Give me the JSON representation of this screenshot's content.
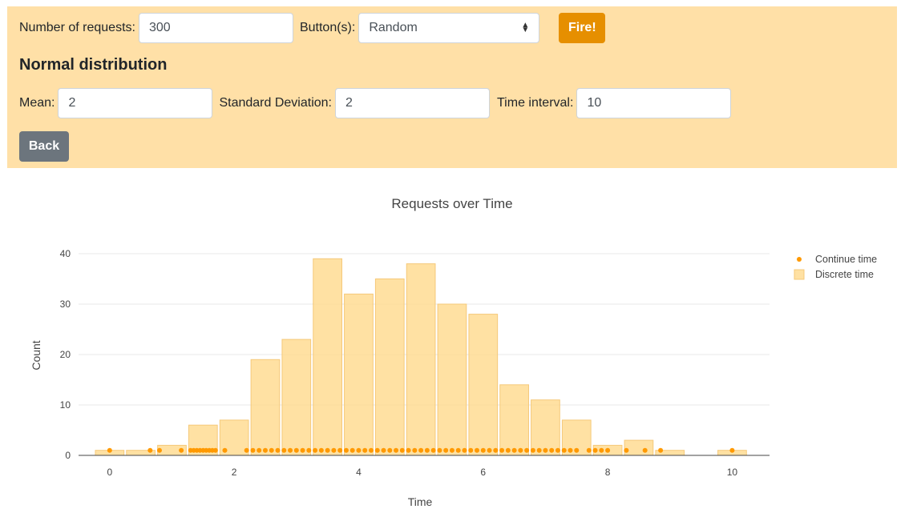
{
  "form": {
    "requests_label": "Number of requests:",
    "requests_value": "300",
    "buttons_label": "Button(s):",
    "buttons_value": "Random",
    "fire_label": "Fire!",
    "section_heading": "Normal distribution",
    "mean_label": "Mean:",
    "mean_value": "2",
    "std_label": "Standard Deviation:",
    "std_value": "2",
    "interval_label": "Time interval:",
    "interval_value": "10",
    "back_label": "Back"
  },
  "colors": {
    "panel_bg": "#ffe0a7",
    "fire_button": "#e68f00",
    "back_button": "#6c757d",
    "bar_fill": "#ffd98c",
    "dot": "#ff9900"
  },
  "chart_data": {
    "type": "bar",
    "title": "Requests over Time",
    "xlabel": "Time",
    "ylabel": "Count",
    "xlim": [
      -0.5,
      10.6
    ],
    "ylim": [
      0,
      40
    ],
    "xticks": [
      0,
      2,
      4,
      6,
      8,
      10
    ],
    "yticks": [
      0,
      10,
      20,
      30,
      40
    ],
    "grid": true,
    "legend_position": "top-right",
    "series": [
      {
        "name": "Discrete time",
        "kind": "bar",
        "x": [
          0,
          0.5,
          1,
          1.5,
          2,
          2.5,
          3,
          3.5,
          4,
          4.5,
          5,
          5.5,
          6,
          6.5,
          7,
          7.5,
          8,
          8.5,
          9,
          10
        ],
        "values": [
          1,
          1,
          2,
          6,
          7,
          19,
          23,
          39,
          32,
          35,
          38,
          30,
          28,
          14,
          11,
          7,
          2,
          3,
          1,
          1
        ]
      },
      {
        "name": "Continue time",
        "kind": "scatter",
        "x": [
          0.0,
          0.65,
          0.8,
          1.15,
          1.3,
          1.35,
          1.4,
          1.45,
          1.5,
          1.55,
          1.6,
          1.65,
          1.7,
          1.85,
          2.2,
          2.3,
          2.4,
          2.5,
          2.6,
          2.7,
          2.8,
          2.9,
          3.0,
          3.1,
          3.2,
          3.3,
          3.4,
          3.5,
          3.6,
          3.7,
          3.8,
          3.9,
          4.0,
          4.1,
          4.2,
          4.3,
          4.4,
          4.5,
          4.6,
          4.7,
          4.8,
          4.9,
          5.0,
          5.1,
          5.2,
          5.3,
          5.4,
          5.5,
          5.6,
          5.7,
          5.8,
          5.9,
          6.0,
          6.1,
          6.2,
          6.3,
          6.4,
          6.5,
          6.6,
          6.7,
          6.8,
          6.9,
          7.0,
          7.1,
          7.2,
          7.3,
          7.4,
          7.5,
          7.7,
          7.8,
          7.9,
          8.0,
          8.3,
          8.6,
          8.85,
          10.0
        ],
        "y": 1
      }
    ]
  }
}
